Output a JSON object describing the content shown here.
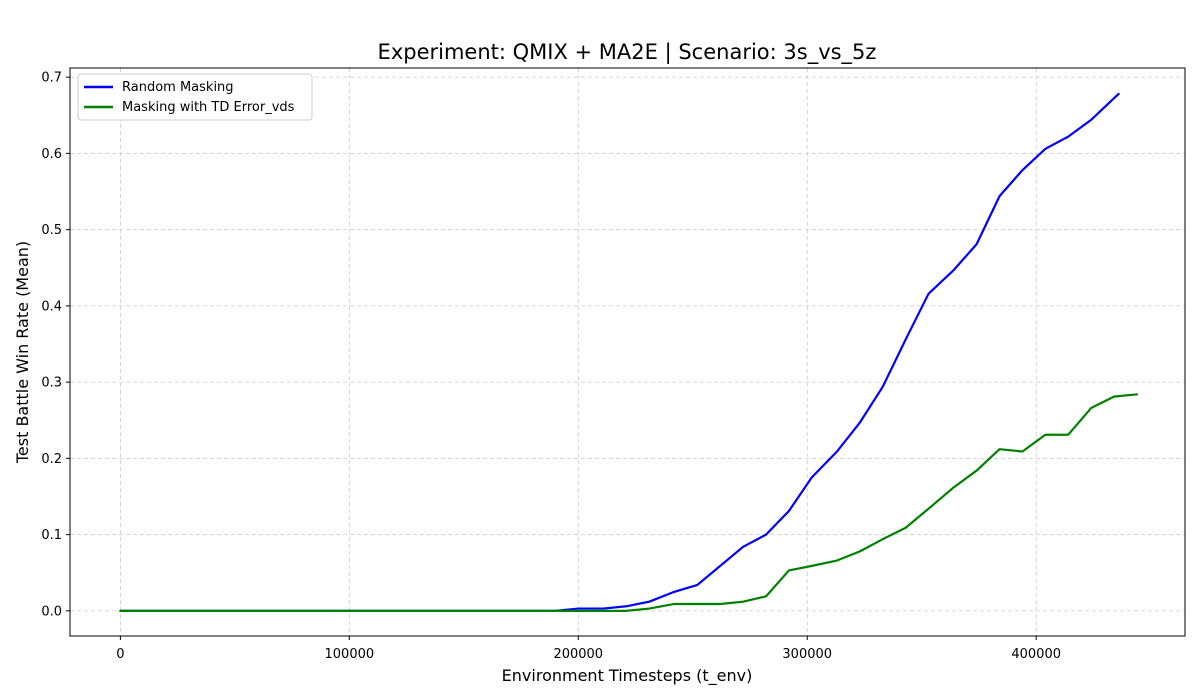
{
  "chart_data": {
    "type": "line",
    "title": "Experiment: QMIX + MA2E | Scenario: 3s_vs_5z",
    "xlabel": "Environment Timesteps (t_env)",
    "ylabel": "Test Battle Win Rate (Mean)",
    "xlim": [
      -22000,
      465000
    ],
    "ylim": [
      -0.033,
      0.712
    ],
    "xticks": [
      0,
      100000,
      200000,
      300000,
      400000
    ],
    "yticks": [
      0.0,
      0.1,
      0.2,
      0.3,
      0.4,
      0.5,
      0.6,
      0.7
    ],
    "grid": true,
    "legend_position": "top-left",
    "series": [
      {
        "name": "Random Masking",
        "color": "#0000ff",
        "x": [
          0,
          10000,
          20000,
          30000,
          40000,
          50000,
          60000,
          70000,
          80000,
          90000,
          100000,
          110000,
          120000,
          130000,
          140000,
          150000,
          160000,
          170000,
          180000,
          190000,
          200000,
          211000,
          221000,
          231000,
          242000,
          252000,
          262000,
          272000,
          282000,
          292000,
          302000,
          313000,
          323000,
          333000,
          343000,
          353000,
          364000,
          374000,
          384000,
          394000,
          404000,
          414000,
          424000,
          436000
        ],
        "y": [
          0,
          0,
          0,
          0,
          0,
          0,
          0,
          0,
          0,
          0,
          0,
          0,
          0,
          0,
          0,
          0,
          0,
          0,
          0,
          0,
          0.003,
          0.003,
          0.006,
          0.012,
          0.025,
          0.034,
          0.059,
          0.084,
          0.1,
          0.131,
          0.175,
          0.209,
          0.247,
          0.294,
          0.356,
          0.416,
          0.447,
          0.481,
          0.544,
          0.578,
          0.606,
          0.622,
          0.644,
          0.678
        ]
      },
      {
        "name": "Masking with TD Error_vds",
        "color": "#008000",
        "x": [
          0,
          10000,
          20000,
          30000,
          40000,
          50000,
          60000,
          70000,
          80000,
          90000,
          100000,
          110000,
          120000,
          130000,
          140000,
          150000,
          160000,
          170000,
          180000,
          190000,
          200000,
          211000,
          221000,
          231000,
          242000,
          252000,
          262000,
          272000,
          282000,
          292000,
          302000,
          313000,
          323000,
          333000,
          343000,
          353000,
          364000,
          374000,
          384000,
          394000,
          404000,
          414000,
          424000,
          434000,
          444000
        ],
        "y": [
          0,
          0,
          0,
          0,
          0,
          0,
          0,
          0,
          0,
          0,
          0,
          0,
          0,
          0,
          0,
          0,
          0,
          0,
          0,
          0,
          0,
          0,
          0,
          0.003,
          0.009,
          0.009,
          0.009,
          0.012,
          0.019,
          0.053,
          0.059,
          0.066,
          0.078,
          0.094,
          0.109,
          0.134,
          0.162,
          0.184,
          0.212,
          0.209,
          0.231,
          0.231,
          0.266,
          0.281,
          0.284
        ]
      }
    ]
  }
}
